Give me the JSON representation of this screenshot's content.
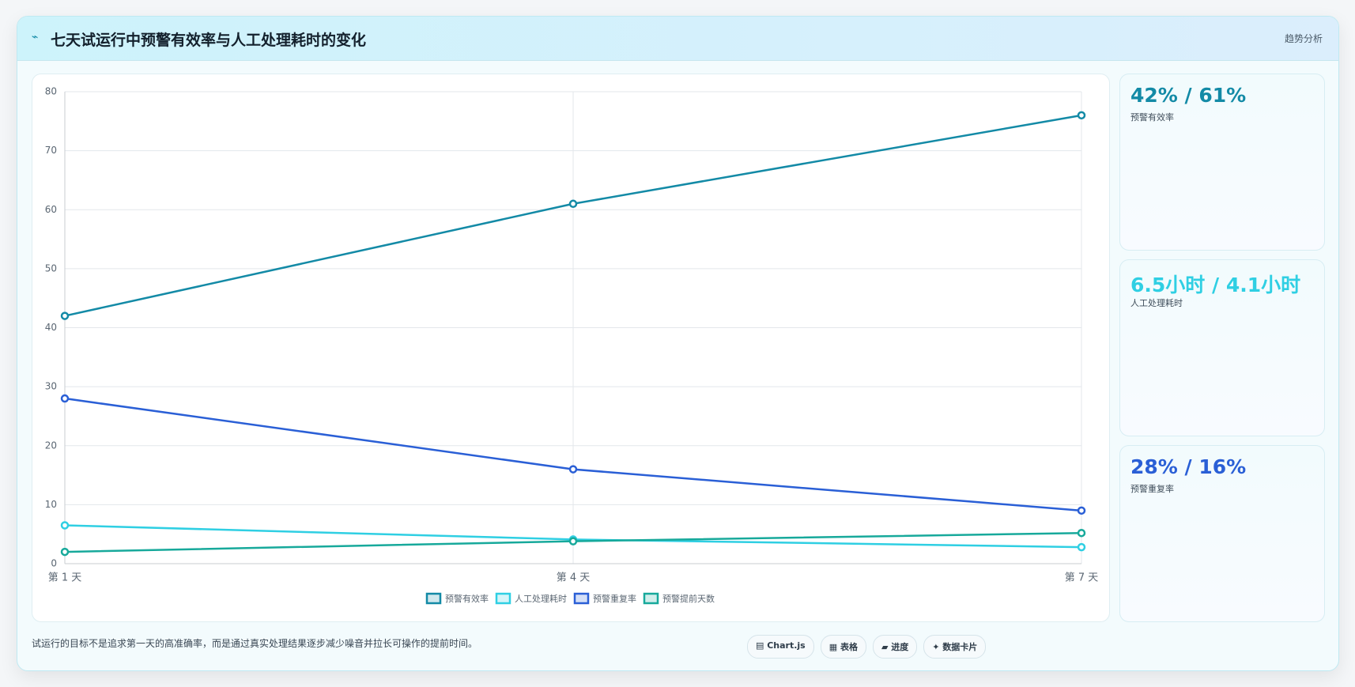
{
  "header": {
    "icon": "⌁",
    "title": "七天试运行中预警有效率与人工处理耗时的变化",
    "tag": "趋势分析"
  },
  "chart_data": {
    "type": "line",
    "categories": [
      "第 1 天",
      "第 4 天",
      "第 7 天"
    ],
    "series": [
      {
        "name": "预警有效率",
        "color": "#138aa6",
        "values": [
          42,
          61,
          76
        ]
      },
      {
        "name": "人工处理耗时",
        "color": "#2fcfe3",
        "values": [
          6.5,
          4.1,
          2.8
        ]
      },
      {
        "name": "预警重复率",
        "color": "#2a5fd6",
        "values": [
          28,
          16,
          9
        ]
      },
      {
        "name": "预警提前天数",
        "color": "#17a99b",
        "values": [
          2,
          3.8,
          5.2
        ]
      }
    ],
    "ylim": [
      0,
      80
    ],
    "yticks": [
      0,
      10,
      20,
      30,
      40,
      50,
      60,
      70,
      80
    ],
    "grid": true
  },
  "cards": [
    {
      "value": "42% / 61%",
      "label": "预警有效率",
      "color": "#138aa6"
    },
    {
      "value": "6.5小时 / 4.1小时",
      "label": "人工处理耗时",
      "color": "#2fcfe3"
    },
    {
      "value": "28% / 16%",
      "label": "预警重复率",
      "color": "#2a5fd6"
    }
  ],
  "footer": {
    "note": "试运行的目标不是追求第一天的高准确率，而是通过真实处理结果逐步减少噪音并拉长可操作的提前时间。",
    "buttons": [
      "▤ Chart.js",
      "▦ 表格",
      "▰ 进度",
      "✦ 数据卡片"
    ]
  }
}
